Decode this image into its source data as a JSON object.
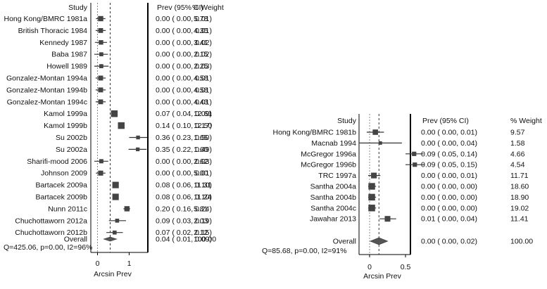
{
  "chart_data": [
    {
      "type": "forest",
      "headers": {
        "study": "Study",
        "estimate": "Prev (95% CI)",
        "weight": "% Weight"
      },
      "xlabel": "Arcsin Prev",
      "xticks": [
        {
          "v": 0,
          "label": "0"
        },
        {
          "v": 1,
          "label": "1"
        }
      ],
      "xlim": [
        -0.35,
        1.6
      ],
      "summary_line": 0.4,
      "studies": [
        {
          "name": "Hong Kong/BMRC 1981a",
          "est": "0.00",
          "lo": "0.00",
          "hi": "0.01",
          "weight": "5.78",
          "ax": 0.1,
          "alo": -0.05,
          "ahi": 0.25
        },
        {
          "name": "British Thoracic 1984",
          "est": "0.00",
          "lo": "0.00",
          "hi": "0.01",
          "weight": "4.35",
          "ax": 0.1,
          "alo": -0.06,
          "ahi": 0.26
        },
        {
          "name": "Kennedy 1987",
          "est": "0.00",
          "lo": "0.00",
          "hi": "0.02",
          "weight": "3.41",
          "ax": 0.11,
          "alo": -0.08,
          "ahi": 0.3
        },
        {
          "name": "Baba 1987",
          "est": "0.00",
          "lo": "0.00",
          "hi": "0.02",
          "weight": "2.15",
          "ax": 0.12,
          "alo": -0.1,
          "ahi": 0.33
        },
        {
          "name": "Howell 1989",
          "est": "0.00",
          "lo": "0.00",
          "hi": "0.03",
          "weight": "2.25",
          "ax": 0.12,
          "alo": -0.1,
          "ahi": 0.35
        },
        {
          "name": "Gonzalez-Montan 1994a",
          "est": "0.00",
          "lo": "0.00",
          "hi": "0.01",
          "weight": "4.58",
          "ax": 0.1,
          "alo": -0.06,
          "ahi": 0.26
        },
        {
          "name": "Gonzalez-Montan 1994b",
          "est": "0.00",
          "lo": "0.00",
          "hi": "0.01",
          "weight": "4.58",
          "ax": 0.1,
          "alo": -0.06,
          "ahi": 0.26
        },
        {
          "name": "Gonzalez-Montan 1994c",
          "est": "0.00",
          "lo": "0.00",
          "hi": "0.01",
          "weight": "4.43",
          "ax": 0.1,
          "alo": -0.06,
          "ahi": 0.26
        },
        {
          "name": "Kamol 1999a",
          "est": "0.07",
          "lo": "0.04",
          "hi": "0.09",
          "weight": "12.61",
          "ax": 0.53,
          "alo": 0.44,
          "ahi": 0.62
        },
        {
          "name": "Kamol 1999b",
          "est": "0.14",
          "lo": "0.10",
          "hi": "0.17",
          "weight": "12.50",
          "ax": 0.75,
          "alo": 0.65,
          "ahi": 0.84
        },
        {
          "name": "Su 2002b",
          "est": "0.36",
          "lo": "0.23",
          "hi": "0.50",
          "weight": "1.65",
          "ax": 1.28,
          "alo": 1.0,
          "ahi": 1.57
        },
        {
          "name": "Su 2002a",
          "est": "0.35",
          "lo": "0.22",
          "hi": "0.49",
          "weight": "1.60",
          "ax": 1.27,
          "alo": 0.98,
          "ahi": 1.55
        },
        {
          "name": "Sharifi-mood 2006",
          "est": "0.00",
          "lo": "0.00",
          "hi": "0.03",
          "weight": "2.62",
          "ax": 0.12,
          "alo": -0.1,
          "ahi": 0.34
        },
        {
          "name": "Johnson 2009",
          "est": "0.00",
          "lo": "0.00",
          "hi": "0.01",
          "weight": "5.00",
          "ax": 0.1,
          "alo": -0.05,
          "ahi": 0.25
        },
        {
          "name": "Bartacek 2009a",
          "est": "0.08",
          "lo": "0.06",
          "hi": "0.10",
          "weight": "11.31",
          "ax": 0.57,
          "alo": 0.5,
          "ahi": 0.64
        },
        {
          "name": "Bartacek 2009b",
          "est": "0.08",
          "lo": "0.06",
          "hi": "0.10",
          "weight": "11.24",
          "ax": 0.57,
          "alo": 0.5,
          "ahi": 0.64
        },
        {
          "name": "Nunn 2011c",
          "est": "0.20",
          "lo": "0.16",
          "hi": "0.24",
          "weight": "5.81",
          "ax": 0.93,
          "alo": 0.82,
          "ahi": 1.03
        },
        {
          "name": "Chuchottaworn 2012a",
          "est": "0.09",
          "lo": "0.03",
          "hi": "0.19",
          "weight": "2.03",
          "ax": 0.62,
          "alo": 0.36,
          "ahi": 0.9
        },
        {
          "name": "Chuchottaworn 2012b",
          "est": "0.07",
          "lo": "0.02",
          "hi": "0.15",
          "weight": "2.12",
          "ax": 0.54,
          "alo": 0.28,
          "ahi": 0.8
        }
      ],
      "overall": {
        "name": "Overall",
        "est": "0.04",
        "lo": "0.01",
        "hi": "0.09",
        "weight": "100.00",
        "ax": 0.4,
        "alo": 0.2,
        "ahi": 0.6
      },
      "heterogeneity": "Q=425.06, p=0.00, I2=96%"
    },
    {
      "type": "forest",
      "headers": {
        "study": "Study",
        "estimate": "Prev (95% CI)",
        "weight": "% Weight"
      },
      "xlabel": "Arcsin Prev",
      "xticks": [
        {
          "v": 0,
          "label": "0"
        },
        {
          "v": 0.5,
          "label": "0.5"
        }
      ],
      "xlim": [
        -0.15,
        0.75
      ],
      "summary_line": 0.13,
      "studies": [
        {
          "name": "Hong Kong/BMRC 1981b",
          "est": "0.00",
          "lo": "0.00",
          "hi": "0.01",
          "weight": "9.57",
          "ax": 0.08,
          "alo": -0.04,
          "ahi": 0.2
        },
        {
          "name": "Macnab 1994",
          "est": "0.00",
          "lo": "0.00",
          "hi": "0.04",
          "weight": "1.58",
          "ax": 0.15,
          "alo": -0.14,
          "ahi": 0.45
        },
        {
          "name": "McGregor 1996a",
          "est": "0.09",
          "lo": "0.05",
          "hi": "0.14",
          "weight": "4.66",
          "ax": 0.62,
          "alo": 0.5,
          "ahi": 0.75
        },
        {
          "name": "McGregor 1996b",
          "est": "0.09",
          "lo": "0.05",
          "hi": "0.15",
          "weight": "4.54",
          "ax": 0.63,
          "alo": 0.5,
          "ahi": 0.76
        },
        {
          "name": "TRC 1997a",
          "est": "0.00",
          "lo": "0.00",
          "hi": "0.01",
          "weight": "11.71",
          "ax": 0.06,
          "alo": -0.02,
          "ahi": 0.15
        },
        {
          "name": "Santha 2004a",
          "est": "0.00",
          "lo": "0.00",
          "hi": "0.00",
          "weight": "18.60",
          "ax": 0.03,
          "alo": -0.02,
          "ahi": 0.09
        },
        {
          "name": "Santha 2004b",
          "est": "0.00",
          "lo": "0.00",
          "hi": "0.00",
          "weight": "18.90",
          "ax": 0.03,
          "alo": -0.02,
          "ahi": 0.09
        },
        {
          "name": "Santha 2004c",
          "est": "0.00",
          "lo": "0.00",
          "hi": "0.00",
          "weight": "19.02",
          "ax": 0.03,
          "alo": -0.02,
          "ahi": 0.09
        },
        {
          "name": "Jawahar 2013",
          "est": "0.01",
          "lo": "0.00",
          "hi": "0.04",
          "weight": "11.41",
          "ax": 0.25,
          "alo": 0.14,
          "ahi": 0.37
        }
      ],
      "overall": {
        "name": "Overall",
        "est": "0.00",
        "lo": "0.00",
        "hi": "0.02",
        "weight": "100.00",
        "ax": 0.13,
        "alo": 0.01,
        "ahi": 0.25
      },
      "heterogeneity": "Q=85.68, p=0.00, I2=91%"
    }
  ]
}
